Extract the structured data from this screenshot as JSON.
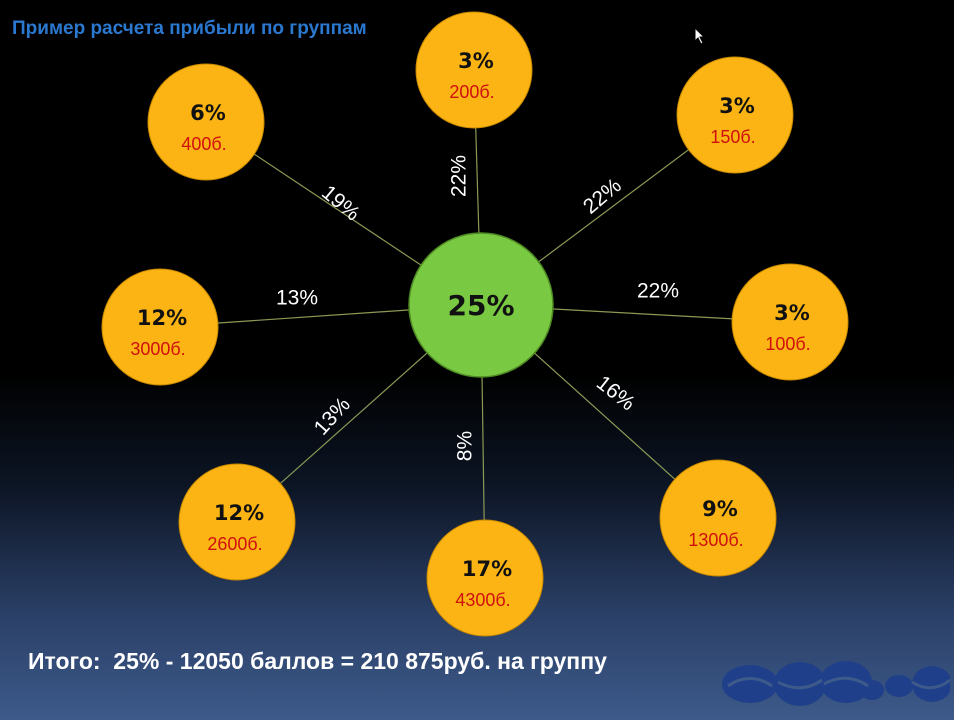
{
  "title": "Пример расчета прибыли по группам",
  "center": {
    "percent": "25%",
    "color": "#7ac943"
  },
  "node_color": "#fbb413",
  "groups": [
    {
      "percent": "3%",
      "points": "200б.",
      "edge": "22%"
    },
    {
      "percent": "3%",
      "points": "150б.",
      "edge": "22%"
    },
    {
      "percent": "3%",
      "points": "100б.",
      "edge": "22%"
    },
    {
      "percent": "9%",
      "points": "1300б.",
      "edge": "16%"
    },
    {
      "percent": "17%",
      "points": "4300б.",
      "edge": "8%"
    },
    {
      "percent": "12%",
      "points": "2600б.",
      "edge": "13%"
    },
    {
      "percent": "12%",
      "points": "3000б.",
      "edge": "13%"
    },
    {
      "percent": "6%",
      "points": "400б.",
      "edge": "19%"
    }
  ],
  "total": "Итого:  25% - 12050 баллов = 210 875руб. на группу",
  "logo": {
    "name": "company-logo",
    "color": "#1f3f8a"
  },
  "cursor_icon": "arrow-cursor-icon"
}
